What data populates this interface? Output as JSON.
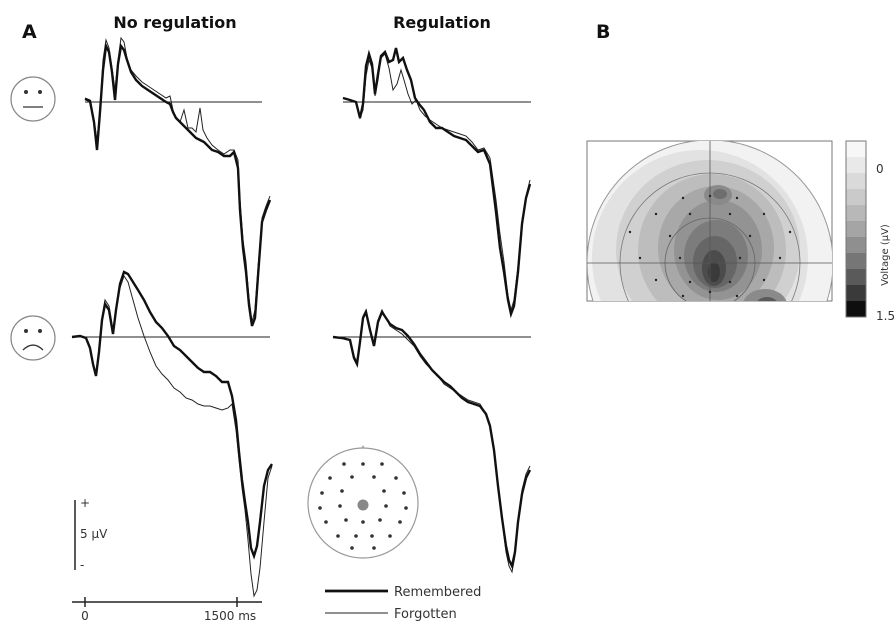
{
  "panel_a": {
    "letter": "A",
    "columns": [
      "No regulation",
      "Regulation"
    ],
    "scale_bar": {
      "plus": "+",
      "minus": "-",
      "label": "5 μV"
    },
    "time_axis": {
      "start": "0",
      "end": "1500 ms"
    }
  },
  "panel_b": {
    "letter": "B",
    "colorbar": {
      "ticks": [
        "0",
        "1.5"
      ],
      "label": "Voltage (μV)"
    }
  },
  "legend": {
    "remembered": "Remembered",
    "forgotten": "Forgotten"
  },
  "icons": [
    "neutral-face-icon",
    "sad-face-icon",
    "electrode-head-map-icon"
  ],
  "colors": {
    "line": "#111111",
    "grid": "#888888"
  }
}
